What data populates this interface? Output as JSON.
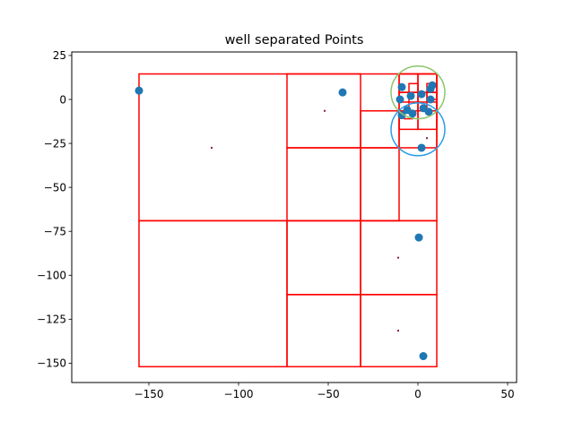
{
  "chart_data": {
    "type": "scatter",
    "title": "well separated Points",
    "xlabel": "",
    "ylabel": "",
    "xlim": [
      -193,
      55
    ],
    "ylim": [
      -161,
      27
    ],
    "grid": false,
    "xticks": [
      -150,
      -100,
      -50,
      0,
      50
    ],
    "yticks": [
      25,
      0,
      -25,
      -50,
      -75,
      -100,
      -125,
      -150
    ],
    "xtick_labels": [
      "−150",
      "−100",
      "−50",
      "0",
      "50"
    ],
    "ytick_labels": [
      "25",
      "0",
      "−25",
      "−50",
      "−75",
      "−100",
      "−125",
      "−150"
    ],
    "colors": {
      "points": "#1f77b4",
      "cells": "#ff0000",
      "circle_green": "#8cc56a",
      "circle_blue": "#2c9de8",
      "small_markers": "#8b1a4a"
    },
    "points": [
      {
        "x": -155.5,
        "y": 5
      },
      {
        "x": -42,
        "y": 4
      },
      {
        "x": -9,
        "y": 7
      },
      {
        "x": -10,
        "y": 0
      },
      {
        "x": -4,
        "y": 2
      },
      {
        "x": 2,
        "y": 3
      },
      {
        "x": 7,
        "y": 6
      },
      {
        "x": 8,
        "y": 8
      },
      {
        "x": 7,
        "y": 0
      },
      {
        "x": -6,
        "y": -6
      },
      {
        "x": -3,
        "y": -8
      },
      {
        "x": 3,
        "y": -5
      },
      {
        "x": 6,
        "y": -7
      },
      {
        "x": -9,
        "y": -9
      },
      {
        "x": 2,
        "y": -27.5
      },
      {
        "x": 0.5,
        "y": -78.5
      },
      {
        "x": 3,
        "y": -146
      }
    ],
    "small_points": [
      {
        "x": -115,
        "y": -27.5
      },
      {
        "x": -52,
        "y": -6.5
      },
      {
        "x": 5,
        "y": -22
      },
      {
        "x": -11,
        "y": -90
      },
      {
        "x": -11,
        "y": -131.5
      }
    ],
    "cells": [
      [
        -155.5,
        -69,
        10.5,
        14.5
      ],
      [
        -155.5,
        -152,
        -73,
        -69
      ],
      [
        -73,
        -27.5,
        -32,
        14.5
      ],
      [
        -32,
        -27.5,
        -10.5,
        -6.5
      ],
      [
        -73,
        -69,
        -32,
        -27.5
      ],
      [
        -32,
        -69,
        -10.5,
        -27.5
      ],
      [
        -73,
        -111,
        -32,
        -69
      ],
      [
        -73,
        -152,
        -32,
        -111
      ],
      [
        -32,
        -111,
        10.5,
        -69
      ],
      [
        -32,
        -152,
        10.5,
        -111
      ],
      [
        -10.5,
        -27.5,
        10.5,
        14.5
      ],
      [
        -10.5,
        -17,
        0,
        -6.5
      ],
      [
        0,
        -17,
        10.5,
        -6.5
      ],
      [
        -10.5,
        -6.5,
        0,
        4
      ],
      [
        0,
        -6.5,
        10.5,
        4
      ],
      [
        -10.5,
        4,
        0,
        14.5
      ],
      [
        0,
        4,
        10.5,
        14.5
      ],
      [
        -5,
        -6.5,
        0,
        -1.5
      ],
      [
        5,
        -6.5,
        10.5,
        -1.5
      ],
      [
        -5,
        4,
        0,
        9
      ],
      [
        5,
        4,
        10.5,
        9
      ],
      [
        0,
        -1.5,
        5,
        4
      ],
      [
        -10.5,
        -1.5,
        -5,
        4
      ],
      [
        -7.5,
        -11,
        -3,
        -6.5
      ],
      [
        5,
        0,
        10.5,
        4
      ]
    ],
    "circles": [
      {
        "cx": 0,
        "cy": 4,
        "r": 15,
        "color": "circle_green"
      },
      {
        "cx": 0,
        "cy": -17,
        "r": 15,
        "color": "circle_blue"
      }
    ]
  }
}
